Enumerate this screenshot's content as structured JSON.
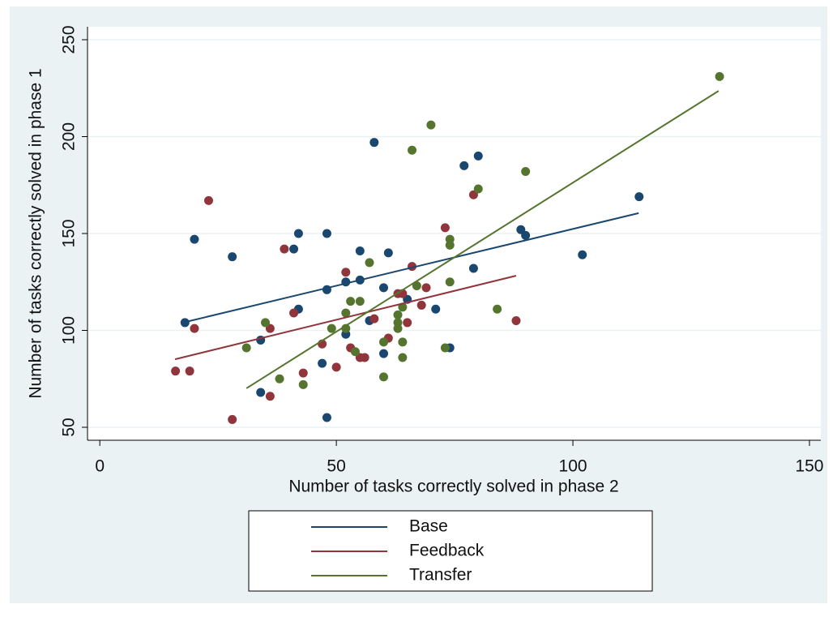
{
  "chart_data": {
    "type": "scatter",
    "xlabel": "Number of tasks correctly solved in phase 2",
    "ylabel": "Number of tasks correctly solved in phase 1",
    "xlim": [
      -2.6,
      152.4
    ],
    "ylim": [
      43.3,
      256.7
    ],
    "xticks": [
      0,
      50,
      100,
      150
    ],
    "yticks": [
      50,
      100,
      150,
      200,
      250
    ],
    "grid": true,
    "series": [
      {
        "name": "Base",
        "color": "#1a476f",
        "x": [
          18,
          20,
          28,
          34,
          34,
          41,
          42,
          42,
          48,
          48,
          47,
          48,
          52,
          52,
          55,
          55,
          58,
          57,
          60,
          60,
          61,
          65,
          71,
          74,
          77,
          80,
          79,
          89,
          90,
          102,
          114
        ],
        "values": [
          104,
          147,
          138,
          95,
          68,
          142,
          150,
          111,
          150,
          121,
          83,
          55,
          125,
          98,
          141,
          126,
          197,
          105,
          122,
          88,
          140,
          116,
          111,
          91,
          185,
          190,
          132,
          152,
          149,
          139,
          169
        ],
        "fit_x": [
          18.2,
          113.9
        ],
        "fit_y": [
          104.4,
          160.5
        ]
      },
      {
        "name": "Feedback",
        "color": "#90353b",
        "x": [
          16,
          19,
          20,
          23,
          28,
          36,
          36,
          39,
          41,
          43,
          47,
          50,
          52,
          53,
          55,
          56,
          58,
          61,
          63,
          64,
          65,
          66,
          68,
          69,
          73,
          79,
          88
        ],
        "values": [
          79,
          79,
          101,
          167,
          54,
          66,
          101,
          142,
          109,
          78,
          93,
          81,
          130,
          91,
          86,
          86,
          106,
          96,
          119,
          119,
          104,
          133,
          113,
          122,
          153,
          170,
          105
        ],
        "fit_x": [
          15.9,
          88.0
        ],
        "fit_y": [
          85.1,
          128.2
        ]
      },
      {
        "name": "Transfer",
        "color": "#55752f",
        "x": [
          31,
          35,
          38,
          43,
          49,
          52,
          52,
          53,
          54,
          55,
          57,
          60,
          60,
          63,
          63,
          63,
          64,
          64,
          64,
          66,
          67,
          70,
          73,
          74,
          74,
          74,
          80,
          84,
          90,
          131
        ],
        "values": [
          91,
          104,
          75,
          72,
          101,
          109,
          101,
          115,
          89,
          115,
          135,
          94,
          76,
          108,
          104,
          101,
          112,
          94,
          86,
          193,
          123,
          206,
          91,
          147,
          144,
          125,
          173,
          111,
          182,
          231
        ],
        "fit_x": [
          31.0,
          130.8
        ],
        "fit_y": [
          70.1,
          223.6
        ]
      }
    ]
  }
}
